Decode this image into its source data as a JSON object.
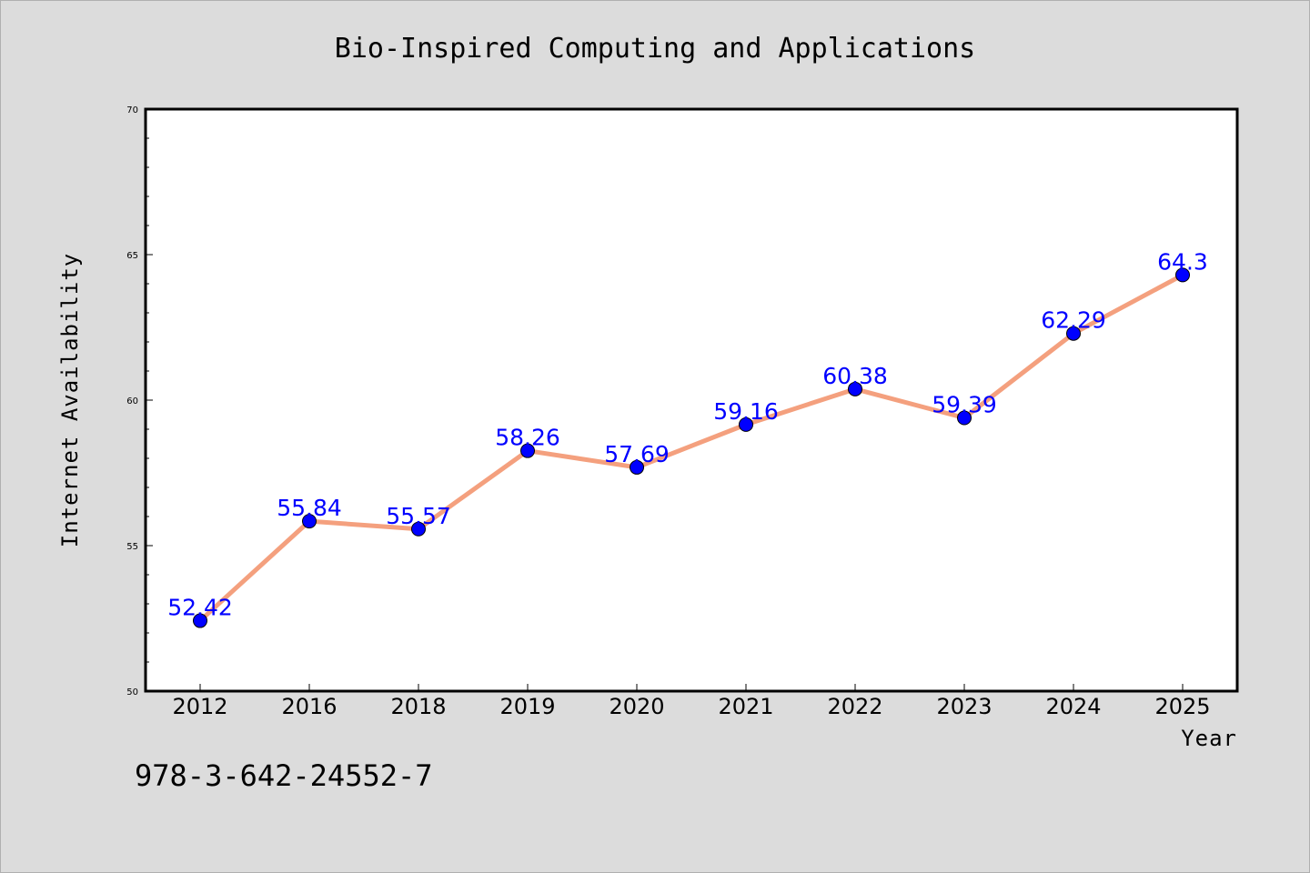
{
  "chart_data": {
    "type": "line",
    "title": "Bio-Inspired Computing and Applications",
    "xlabel": "Year",
    "ylabel": "Internet Availability",
    "categories": [
      "2012",
      "2016",
      "2018",
      "2019",
      "2020",
      "2021",
      "2022",
      "2023",
      "2024",
      "2025"
    ],
    "series": [
      {
        "values": [
          52.42,
          55.84,
          55.57,
          58.26,
          57.69,
          59.16,
          60.38,
          59.39,
          62.29,
          64.3
        ],
        "data_labels": [
          "52.42",
          "55.84",
          "55.57",
          "58.26",
          "57.69",
          "59.16",
          "60.38",
          "59.39",
          "62.29",
          "64.3"
        ],
        "line_color": "#f4a07e",
        "marker_color": "#0000ff"
      }
    ],
    "ylim": [
      50,
      70
    ],
    "yticks": [
      50,
      55,
      60,
      65,
      70
    ],
    "ytick_labels": [
      "50",
      "55",
      "60",
      "65",
      "70"
    ],
    "grid": false,
    "legend": "none",
    "plot_background": "#ffffff",
    "page_background": "#dcdcdc"
  },
  "footer": {
    "isbn": "978-3-642-24552-7"
  }
}
